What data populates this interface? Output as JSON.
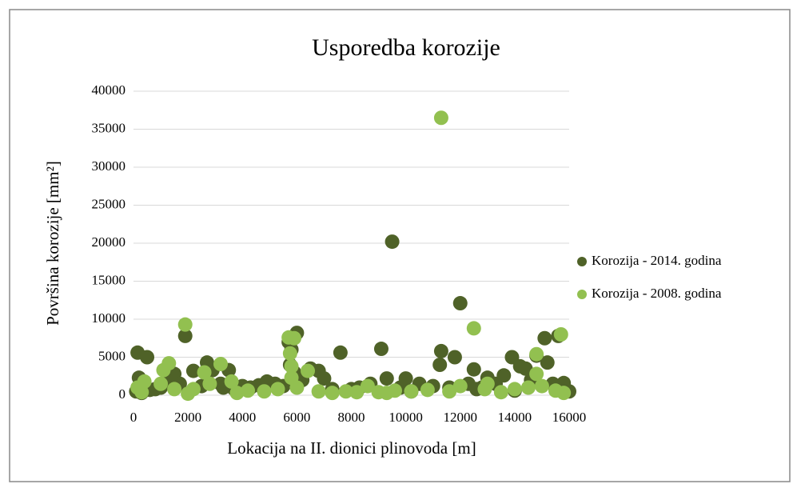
{
  "chart_data": {
    "type": "scatter",
    "title": "Usporedba korozije",
    "x_label": "Lokacija na II. dionici plinovoda [m]",
    "y_label": "Površina korozije [mm²]",
    "xlim": [
      0,
      16000
    ],
    "xticks": [
      0,
      2000,
      4000,
      6000,
      8000,
      10000,
      12000,
      14000,
      16000
    ],
    "ylim": [
      0,
      40000
    ],
    "yticks": [
      0,
      5000,
      10000,
      15000,
      20000,
      25000,
      30000,
      35000,
      40000
    ],
    "grid": true,
    "legend": "right",
    "series": [
      {
        "name": "Korozija - 2014. godina",
        "color": "#4f6228",
        "x": [
          150,
          200,
          100,
          300,
          500,
          800,
          1000,
          1300,
          1500,
          1700,
          1900,
          2200,
          2500,
          2700,
          2900,
          3200,
          3500,
          3700,
          4000,
          4300,
          4600,
          4900,
          5200,
          5500,
          5700,
          5750,
          5800,
          6000,
          6200,
          6500,
          6800,
          7000,
          7300,
          7600,
          8000,
          8300,
          8700,
          9100,
          9300,
          9500,
          9800,
          10000,
          10500,
          11000,
          11300,
          11250,
          11600,
          11800,
          12000,
          12300,
          12500,
          12800,
          13000,
          13300,
          13600,
          13900,
          14200,
          14400,
          14600,
          14800,
          15100,
          15200,
          15400,
          15600,
          15800,
          16000,
          5900,
          3300,
          600,
          10200,
          12600,
          14000
        ],
        "values": [
          5600,
          2300,
          500,
          300,
          5000,
          800,
          1000,
          1800,
          2800,
          1500,
          7800,
          3200,
          1200,
          4300,
          3300,
          1500,
          3300,
          800,
          1200,
          1000,
          1300,
          1800,
          1500,
          1200,
          7000,
          4000,
          6000,
          8200,
          2000,
          3500,
          3200,
          2200,
          800,
          5600,
          800,
          1000,
          1500,
          6100,
          2200,
          20200,
          1000,
          2200,
          1500,
          1200,
          5800,
          4000,
          1000,
          5000,
          12100,
          1500,
          3400,
          1000,
          2300,
          1500,
          2600,
          5000,
          3800,
          3500,
          2000,
          5200,
          7500,
          4300,
          1500,
          7800,
          1600,
          500,
          3000,
          1000,
          700,
          500,
          800,
          600
        ]
      },
      {
        "name": "Korozija - 2008. godina",
        "color": "#92c050",
        "x": [
          150,
          300,
          1100,
          1300,
          1000,
          1500,
          1900,
          2200,
          2600,
          2800,
          3200,
          3600,
          3800,
          4200,
          4800,
          5300,
          5700,
          5750,
          5800,
          5800,
          5900,
          6000,
          6400,
          6800,
          7300,
          7800,
          8200,
          8600,
          9000,
          9600,
          10200,
          10800,
          11300,
          11600,
          12000,
          12500,
          12900,
          13500,
          14000,
          14500,
          14800,
          14800,
          15000,
          15500,
          15700,
          15800,
          400,
          2000,
          9300,
          13000
        ],
        "values": [
          1000,
          400,
          3300,
          4200,
          1500,
          800,
          9300,
          800,
          3000,
          1500,
          4100,
          1800,
          300,
          600,
          500,
          800,
          7600,
          5500,
          3800,
          2300,
          7500,
          1000,
          3200,
          500,
          300,
          500,
          400,
          1200,
          400,
          600,
          500,
          700,
          36500,
          500,
          1200,
          8800,
          800,
          400,
          800,
          1000,
          5400,
          2800,
          1200,
          600,
          8000,
          300,
          1800,
          200,
          300,
          1500
        ]
      }
    ]
  }
}
